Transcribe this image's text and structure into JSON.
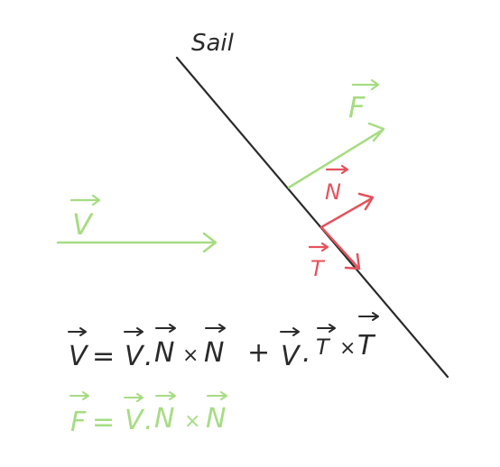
{
  "labels": {
    "sail": "Sail",
    "v": "V",
    "f": "F",
    "n": "N",
    "t": "T"
  },
  "equations": {
    "eq1": {
      "lhs": "V",
      "terms": [
        {
          "a": "V",
          "op1": ".",
          "b": "N",
          "op2": "×",
          "c": "N"
        },
        {
          "sign": "+",
          "a": "V",
          "op1": ".",
          "b": "T",
          "op2": "×",
          "c": "T"
        }
      ]
    },
    "eq2": {
      "lhs": "F",
      "terms": [
        {
          "a": "V",
          "op1": ".",
          "b": "N",
          "op2": "×",
          "c": "N"
        }
      ]
    }
  },
  "colors": {
    "ink": "#2a2a2a",
    "green": "#a6dc82",
    "red": "#e4525c"
  }
}
